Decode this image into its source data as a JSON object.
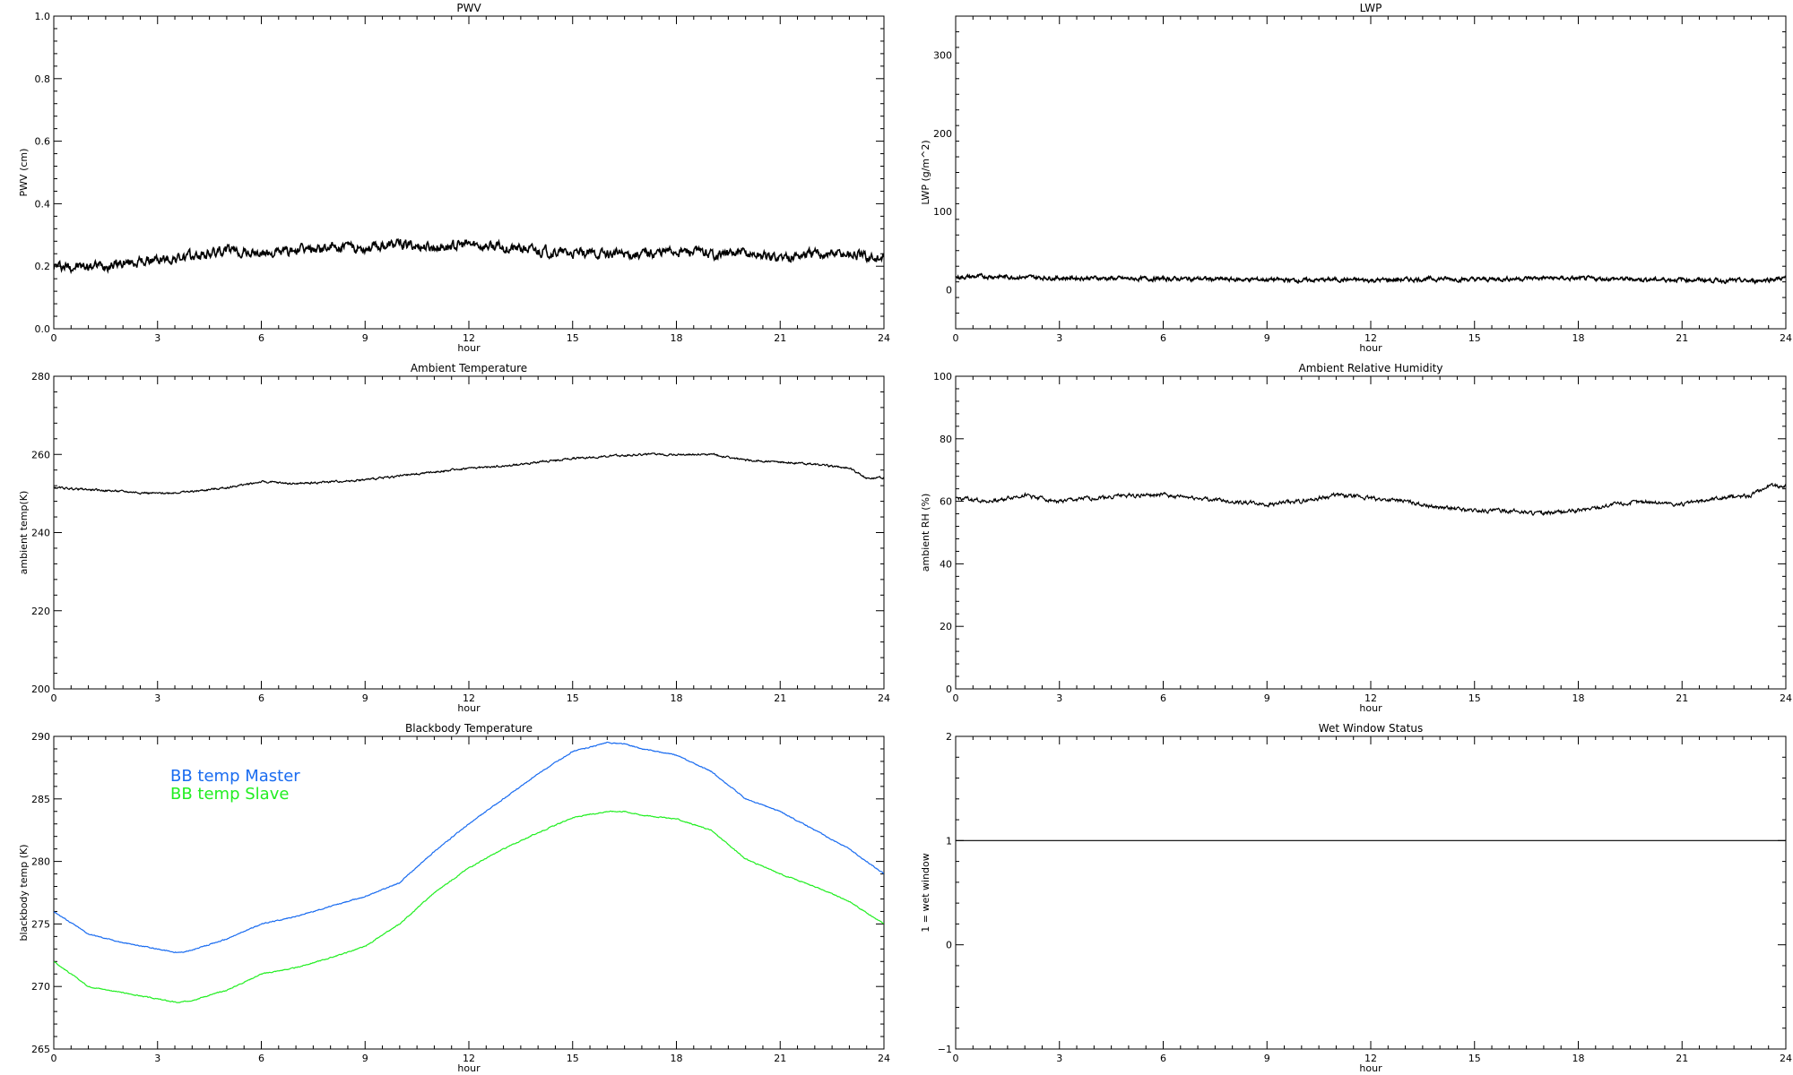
{
  "chart_data": [
    {
      "id": "pwv",
      "type": "line",
      "title": "PWV",
      "xlabel": "hour",
      "ylabel": "PWV (cm)",
      "xlim": [
        0,
        24
      ],
      "ylim": [
        0,
        1
      ],
      "xticks": [
        0,
        3,
        6,
        9,
        12,
        15,
        18,
        21,
        24
      ],
      "yticks": [
        0.0,
        0.2,
        0.4,
        0.6,
        0.8,
        1.0
      ],
      "ytick_labels": [
        "0.0",
        "0.2",
        "0.4",
        "0.6",
        "0.8",
        "1.0"
      ],
      "noise": 0.012,
      "series": [
        {
          "color": "#000000",
          "x": [
            0,
            1,
            2,
            3,
            4,
            5,
            6,
            7,
            8,
            9,
            10,
            11,
            12,
            13,
            14,
            15,
            16,
            17,
            18,
            19,
            20,
            21,
            22,
            23,
            24
          ],
          "y": [
            0.2,
            0.2,
            0.21,
            0.22,
            0.23,
            0.25,
            0.24,
            0.25,
            0.26,
            0.26,
            0.27,
            0.26,
            0.27,
            0.26,
            0.25,
            0.24,
            0.24,
            0.24,
            0.25,
            0.24,
            0.24,
            0.23,
            0.24,
            0.24,
            0.22
          ]
        }
      ]
    },
    {
      "id": "lwp",
      "type": "line",
      "title": "LWP",
      "xlabel": "hour",
      "ylabel": "LWP (g/m^2)",
      "xlim": [
        0,
        24
      ],
      "ylim": [
        -50,
        350
      ],
      "xticks": [
        0,
        3,
        6,
        9,
        12,
        15,
        18,
        21,
        24
      ],
      "yticks": [
        0,
        100,
        200,
        300
      ],
      "ytick_labels": [
        "0",
        "100",
        "200",
        "300"
      ],
      "noise": 2,
      "series": [
        {
          "color": "#000000",
          "x": [
            0,
            1,
            2,
            3,
            4,
            5,
            6,
            7,
            8,
            9,
            10,
            11,
            12,
            13,
            14,
            15,
            16,
            17,
            18,
            19,
            20,
            21,
            22,
            23,
            24
          ],
          "y": [
            16,
            17,
            16,
            15,
            15,
            14,
            14,
            14,
            13,
            13,
            12,
            13,
            12,
            13,
            14,
            13,
            14,
            15,
            14,
            14,
            13,
            13,
            12,
            11,
            15
          ]
        }
      ]
    },
    {
      "id": "ambient_temp",
      "type": "line",
      "title": "Ambient Temperature",
      "xlabel": "hour",
      "ylabel": "ambient temp(K)",
      "xlim": [
        0,
        24
      ],
      "ylim": [
        200,
        280
      ],
      "xticks": [
        0,
        3,
        6,
        9,
        12,
        15,
        18,
        21,
        24
      ],
      "yticks": [
        200,
        220,
        240,
        260,
        280
      ],
      "ytick_labels": [
        "200",
        "220",
        "240",
        "260",
        "280"
      ],
      "noise": 0.2,
      "series": [
        {
          "color": "#000000",
          "x": [
            0,
            1,
            2,
            3,
            4,
            5,
            6,
            7,
            8,
            9,
            10,
            11,
            12,
            13,
            14,
            15,
            16,
            17,
            18,
            19,
            20,
            21,
            22,
            23,
            23.5,
            24
          ],
          "y": [
            251.5,
            251,
            250.5,
            250,
            250.5,
            251.5,
            253,
            252.5,
            253,
            253.5,
            254.5,
            255.5,
            256.5,
            257,
            258,
            259,
            259.5,
            260,
            260,
            260,
            258.5,
            258,
            257.5,
            256.5,
            254,
            254
          ]
        }
      ]
    },
    {
      "id": "ambient_rh",
      "type": "line",
      "title": "Ambient Relative Humidity",
      "xlabel": "hour",
      "ylabel": "ambient RH (%)",
      "xlim": [
        0,
        24
      ],
      "ylim": [
        0,
        100
      ],
      "xticks": [
        0,
        3,
        6,
        9,
        12,
        15,
        18,
        21,
        24
      ],
      "yticks": [
        0,
        20,
        40,
        60,
        80,
        100
      ],
      "ytick_labels": [
        "0",
        "20",
        "40",
        "60",
        "80",
        "100"
      ],
      "noise": 0.5,
      "series": [
        {
          "color": "#000000",
          "x": [
            0,
            1,
            2,
            3,
            4,
            5,
            6,
            7,
            8,
            9,
            10,
            11,
            12,
            13,
            14,
            15,
            16,
            17,
            18,
            19,
            20,
            21,
            22,
            23,
            23.5,
            24
          ],
          "y": [
            61,
            60,
            62,
            60,
            61,
            62,
            62,
            61,
            60,
            59,
            60,
            62,
            61,
            60,
            58,
            57,
            57,
            56,
            57,
            59,
            60,
            59,
            61,
            62,
            65,
            65
          ]
        }
      ]
    },
    {
      "id": "bb_temp",
      "type": "line",
      "title": "Blackbody Temperature",
      "xlabel": "hour",
      "ylabel": "blackbody temp (K)",
      "xlim": [
        0,
        24
      ],
      "ylim": [
        265,
        290
      ],
      "xticks": [
        0,
        3,
        6,
        9,
        12,
        15,
        18,
        21,
        24
      ],
      "yticks": [
        265,
        270,
        275,
        280,
        285,
        290
      ],
      "ytick_labels": [
        "265",
        "270",
        "275",
        "280",
        "285",
        "290"
      ],
      "noise": 0.03,
      "legend": "upper-left",
      "series": [
        {
          "name": "BB temp Master",
          "color": "#1a6cf0",
          "x": [
            0,
            1,
            2,
            3,
            3.6,
            4,
            5,
            6,
            7,
            8,
            9,
            10,
            11,
            12,
            13,
            14,
            15,
            16,
            16.5,
            17,
            18,
            19,
            20,
            21,
            22,
            23,
            24
          ],
          "y": [
            276,
            274.2,
            273.5,
            273,
            272.7,
            272.9,
            273.8,
            275,
            275.6,
            276.4,
            277.2,
            278.3,
            280.8,
            283,
            285,
            287,
            288.8,
            289.5,
            289.4,
            289,
            288.5,
            287.2,
            285,
            284,
            282.5,
            281,
            279
          ]
        },
        {
          "name": "BB temp Slave",
          "color": "#22ee22",
          "x": [
            0,
            1,
            2,
            3,
            3.6,
            4,
            5,
            6,
            7,
            8,
            9,
            10,
            11,
            12,
            13,
            14,
            15,
            16,
            16.5,
            17,
            18,
            19,
            20,
            21,
            22,
            23,
            24
          ],
          "y": [
            272,
            270,
            269.5,
            269,
            268.7,
            268.9,
            269.7,
            271,
            271.5,
            272.3,
            273.2,
            275,
            277.5,
            279.5,
            281,
            282.3,
            283.5,
            284,
            284,
            283.7,
            283.4,
            282.5,
            280.2,
            279,
            278,
            276.8,
            275
          ]
        }
      ]
    },
    {
      "id": "wet_window",
      "type": "line",
      "title": "Wet Window Status",
      "xlabel": "hour",
      "ylabel": "1 = wet window",
      "xlim": [
        0,
        24
      ],
      "ylim": [
        -1,
        2
      ],
      "xticks": [
        0,
        3,
        6,
        9,
        12,
        15,
        18,
        21,
        24
      ],
      "yticks": [
        -1,
        0,
        1,
        2
      ],
      "ytick_labels": [
        "−1",
        "0",
        "1",
        "2"
      ],
      "noise": 0,
      "series": [
        {
          "color": "#000000",
          "x": [
            0,
            24
          ],
          "y": [
            1,
            1
          ]
        }
      ]
    }
  ]
}
